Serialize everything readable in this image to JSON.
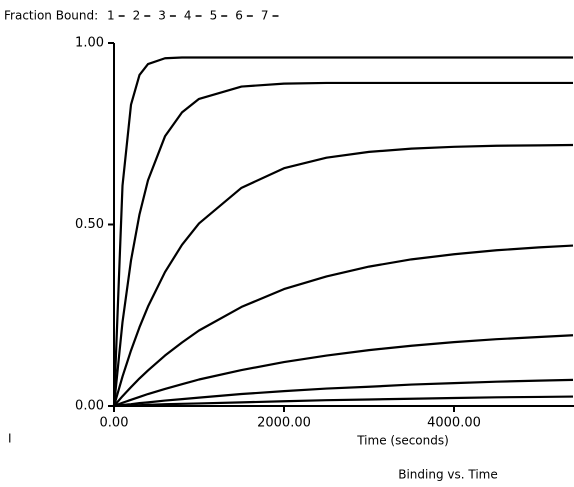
{
  "chart_data": {
    "type": "line",
    "legend_title": "Fraction Bound:",
    "x": [
      0,
      100,
      200,
      300,
      400,
      600,
      800,
      1000,
      1500,
      2000,
      2500,
      3000,
      3500,
      4000,
      4500,
      5000,
      5400
    ],
    "series": [
      {
        "name": "1",
        "color": "#000000",
        "values": [
          0,
          0.607,
          0.83,
          0.912,
          0.942,
          0.958,
          0.96,
          0.96,
          0.96,
          0.96,
          0.96,
          0.96,
          0.96,
          0.96,
          0.96,
          0.96,
          0.96
        ]
      },
      {
        "name": "2",
        "color": "#000000",
        "values": [
          0,
          0.231,
          0.401,
          0.528,
          0.622,
          0.743,
          0.809,
          0.846,
          0.88,
          0.888,
          0.89,
          0.89,
          0.89,
          0.89,
          0.89,
          0.89,
          0.89
        ]
      },
      {
        "name": "3",
        "color": "#000000",
        "values": [
          0,
          0.081,
          0.153,
          0.217,
          0.274,
          0.369,
          0.444,
          0.503,
          0.601,
          0.655,
          0.684,
          0.7,
          0.709,
          0.714,
          0.717,
          0.718,
          0.719
        ]
      },
      {
        "name": "4",
        "color": "#000000",
        "values": [
          0,
          0.027,
          0.052,
          0.076,
          0.098,
          0.139,
          0.175,
          0.208,
          0.273,
          0.322,
          0.357,
          0.384,
          0.404,
          0.418,
          0.429,
          0.437,
          0.442
        ]
      },
      {
        "name": "5",
        "color": "#000000",
        "values": [
          0,
          0.009,
          0.017,
          0.025,
          0.033,
          0.047,
          0.06,
          0.073,
          0.099,
          0.121,
          0.139,
          0.154,
          0.166,
          0.176,
          0.184,
          0.19,
          0.195
        ]
      },
      {
        "name": "6",
        "color": "#000000",
        "values": [
          0,
          0.003,
          0.005,
          0.008,
          0.01,
          0.015,
          0.019,
          0.023,
          0.033,
          0.041,
          0.048,
          0.053,
          0.059,
          0.063,
          0.067,
          0.07,
          0.072
        ]
      },
      {
        "name": "7",
        "color": "#000000",
        "values": [
          0,
          0.001,
          0.002,
          0.002,
          0.003,
          0.005,
          0.006,
          0.007,
          0.01,
          0.013,
          0.016,
          0.018,
          0.02,
          0.022,
          0.024,
          0.025,
          0.026
        ]
      }
    ],
    "xlim": [
      0,
      5400
    ],
    "ylim": [
      0,
      1
    ],
    "xticks": [
      {
        "value": 0,
        "label": "0.00"
      },
      {
        "value": 2000,
        "label": "2000.00"
      },
      {
        "value": 4000,
        "label": "4000.00"
      }
    ],
    "yticks": [
      {
        "value": 0,
        "label": "0.00"
      },
      {
        "value": 0.5,
        "label": "0.50"
      },
      {
        "value": 1,
        "label": "1.00"
      }
    ],
    "x_label": "Time (seconds)",
    "caption": "Binding vs. Time",
    "annotation": "I"
  }
}
